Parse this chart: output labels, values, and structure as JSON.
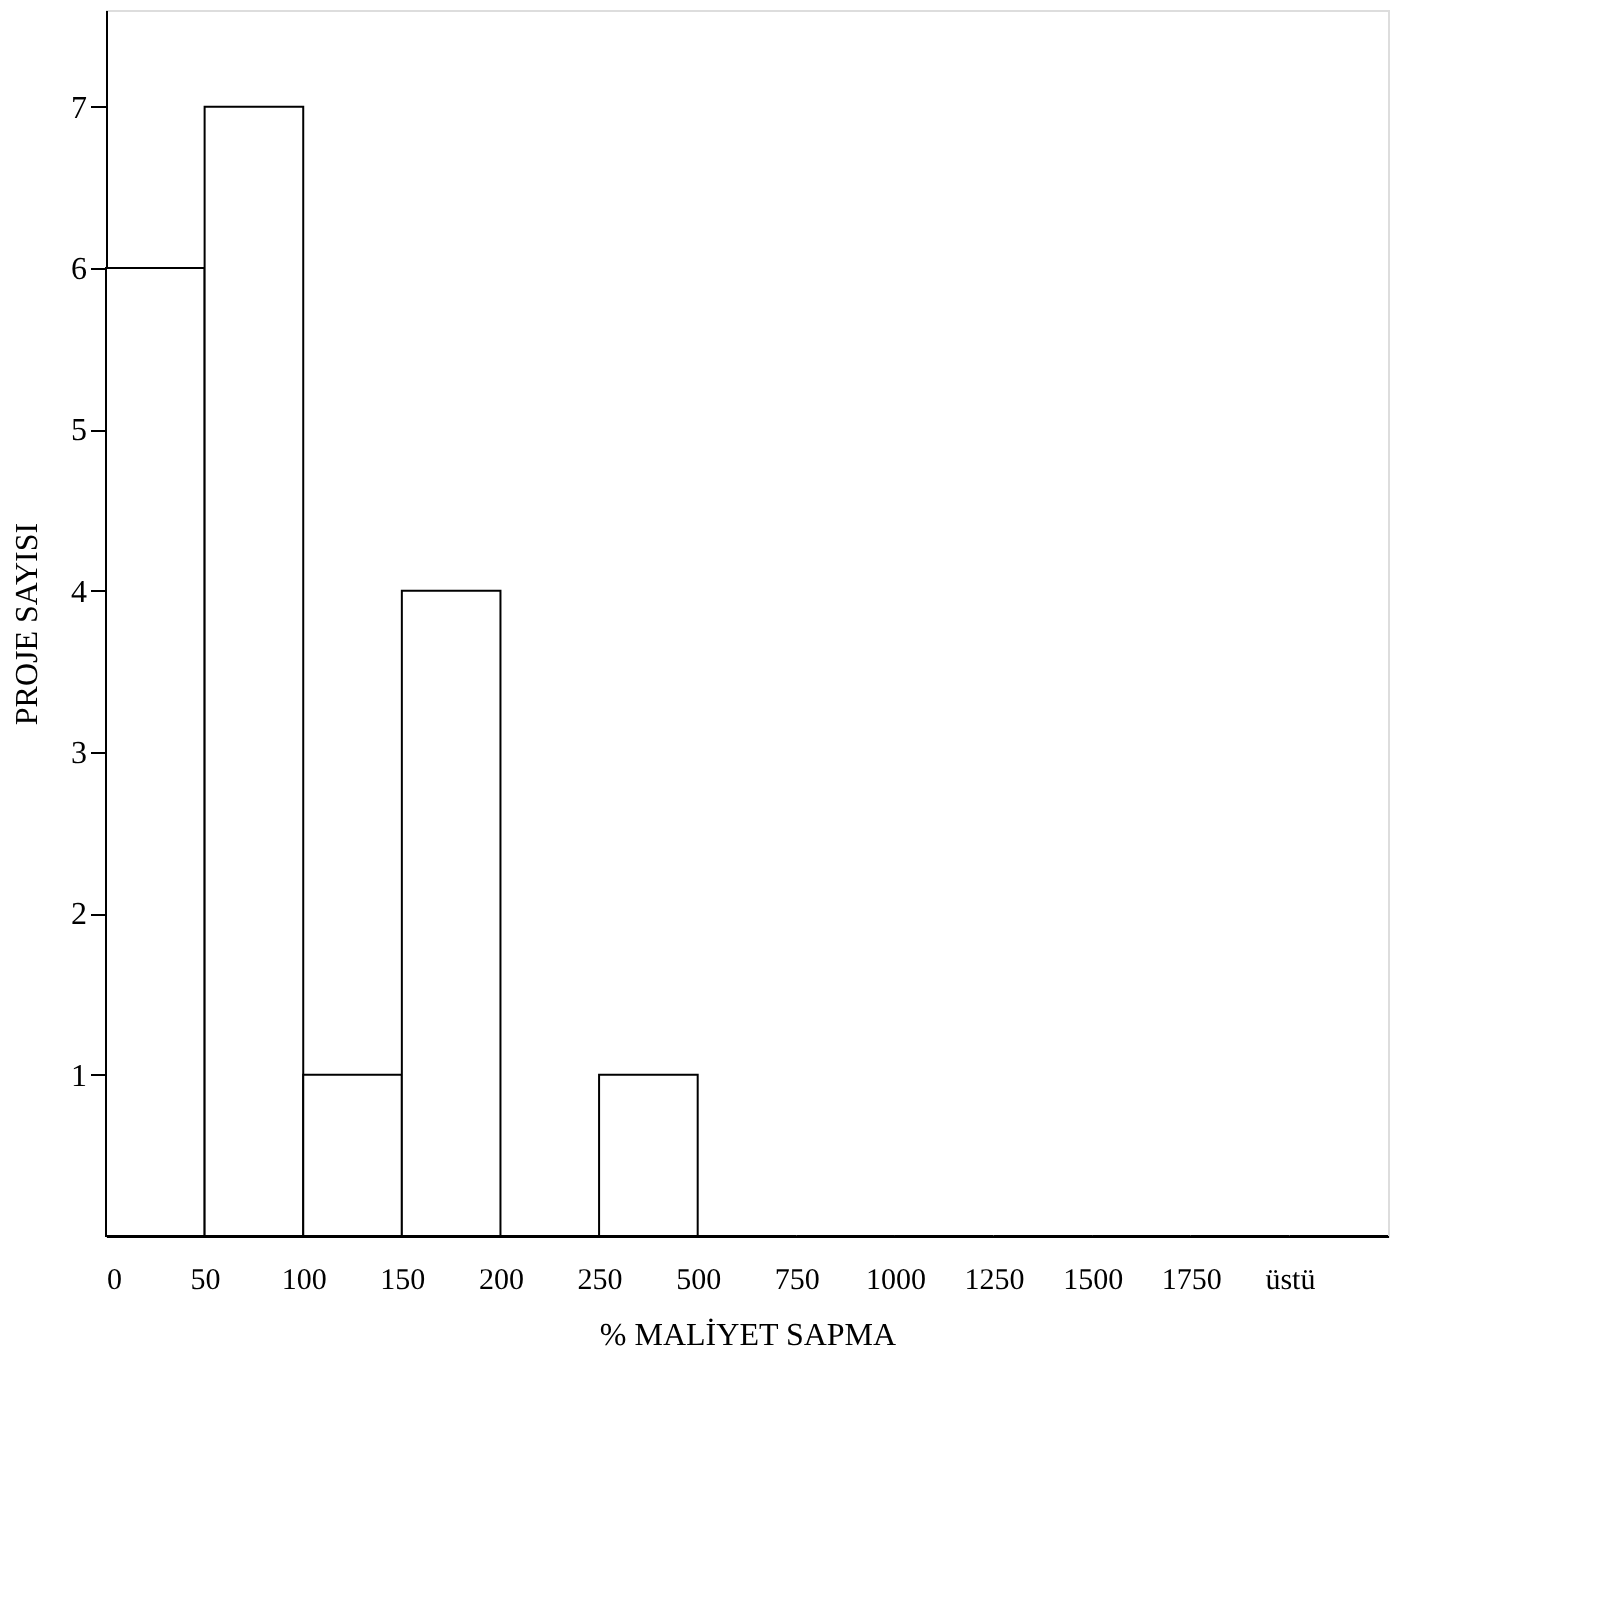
{
  "chart_data": {
    "type": "bar",
    "categories": [
      "0",
      "50",
      "100",
      "150",
      "200",
      "250",
      "500",
      "750",
      "1000",
      "1250",
      "1500",
      "1750",
      "üstü"
    ],
    "values": [
      6,
      7,
      1,
      4,
      0,
      1,
      0,
      0,
      0,
      0,
      0,
      0,
      0
    ],
    "color": "#ffffff",
    "xlabel": "% MALİYET SAPMA",
    "ylabel": "PROJE SAYISI",
    "ylim": [
      0,
      7.6
    ],
    "yticks": [
      1,
      2,
      3,
      4,
      5,
      6,
      7
    ],
    "grid": false
  }
}
